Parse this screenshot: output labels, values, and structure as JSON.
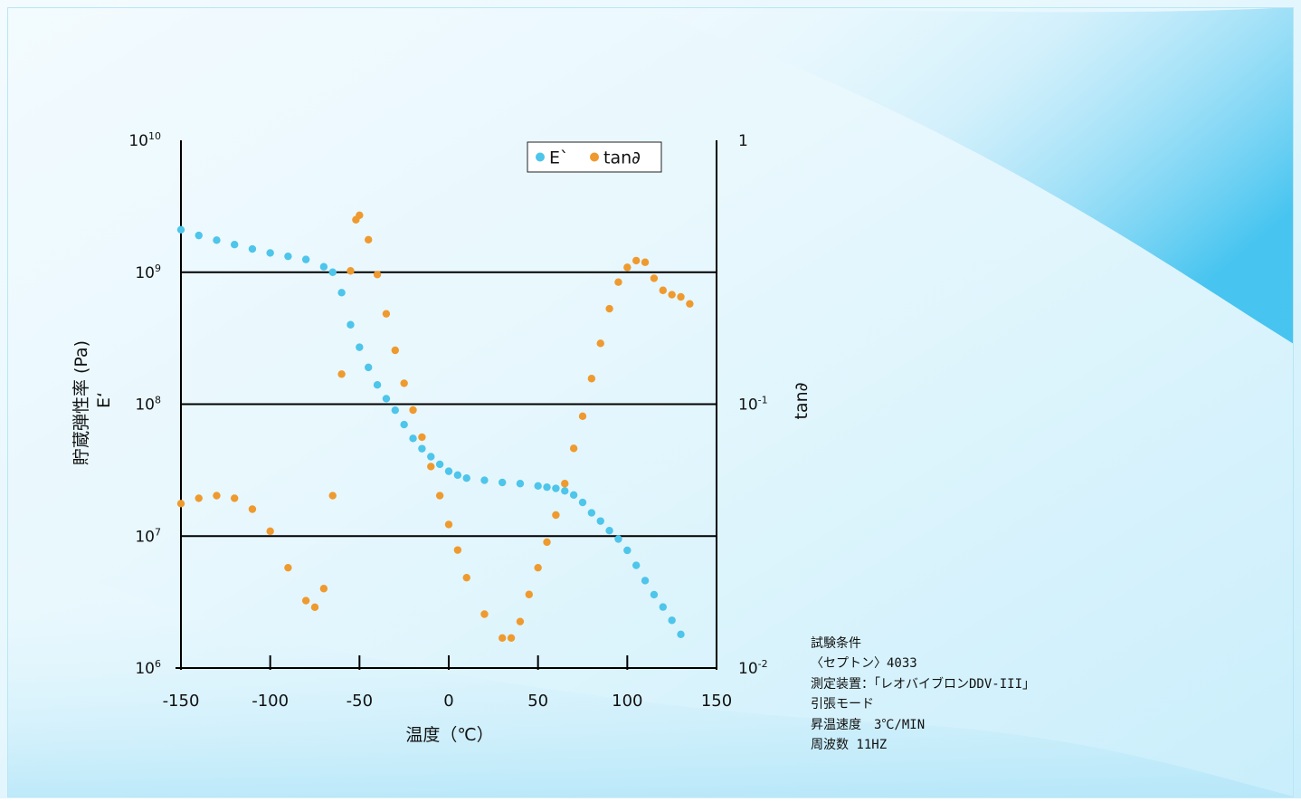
{
  "chart_data": {
    "type": "scatter",
    "xlabel": "温度（℃）",
    "ylabel_left_line1": "貯蔵弾性率 (Pa)",
    "ylabel_left_line2": "E‘",
    "ylabel_right": "tan∂",
    "x_ticks": [
      "-150",
      "-100",
      "-50",
      "0",
      "50",
      "100",
      "150"
    ],
    "x_tick_values": [
      -150,
      -100,
      -50,
      0,
      50,
      100,
      150
    ],
    "xlim": [
      -150,
      150
    ],
    "left_axis": {
      "scale": "log",
      "ylim": [
        1000000,
        10000000000
      ],
      "ticks": [
        {
          "value": 10000000000,
          "base": "10",
          "exp": "10"
        },
        {
          "value": 1000000000,
          "base": "10",
          "exp": "9"
        },
        {
          "value": 100000000,
          "base": "10",
          "exp": "8"
        },
        {
          "value": 10000000,
          "base": "10",
          "exp": "7"
        },
        {
          "value": 1000000,
          "base": "10",
          "exp": "6"
        }
      ]
    },
    "right_axis": {
      "scale": "log",
      "ylim": [
        0.01,
        1
      ],
      "ticks": [
        {
          "value": 1,
          "base": "1",
          "exp": ""
        },
        {
          "value": 0.1,
          "base": "10",
          "exp": "-1"
        },
        {
          "value": 0.01,
          "base": "10",
          "exp": "-2"
        }
      ]
    },
    "grid": "horizontal lines at 10^7, 10^8, 10^9",
    "legend_position": "top-right",
    "series": [
      {
        "name": "E`",
        "axis": "left",
        "color": "#4ec5ea",
        "points": [
          [
            -150,
            2100000000
          ],
          [
            -140,
            1900000000
          ],
          [
            -130,
            1750000000
          ],
          [
            -120,
            1620000000
          ],
          [
            -110,
            1500000000
          ],
          [
            -100,
            1400000000
          ],
          [
            -90,
            1320000000
          ],
          [
            -80,
            1250000000
          ],
          [
            -70,
            1100000000
          ],
          [
            -65,
            1000000000
          ],
          [
            -60,
            700000000
          ],
          [
            -55,
            400000000
          ],
          [
            -50,
            270000000
          ],
          [
            -45,
            190000000
          ],
          [
            -40,
            140000000
          ],
          [
            -35,
            110000000
          ],
          [
            -30,
            90000000
          ],
          [
            -25,
            70000000
          ],
          [
            -20,
            55000000
          ],
          [
            -15,
            46000000
          ],
          [
            -10,
            40000000
          ],
          [
            -5,
            35000000
          ],
          [
            0,
            31000000
          ],
          [
            5,
            29000000
          ],
          [
            10,
            27500000
          ],
          [
            20,
            26500000
          ],
          [
            30,
            25500000
          ],
          [
            40,
            25000000
          ],
          [
            50,
            24000000
          ],
          [
            55,
            23500000
          ],
          [
            60,
            23000000
          ],
          [
            65,
            22000000
          ],
          [
            70,
            20500000
          ],
          [
            75,
            18000000
          ],
          [
            80,
            15000000
          ],
          [
            85,
            13000000
          ],
          [
            90,
            11000000
          ],
          [
            95,
            9500000
          ],
          [
            100,
            7800000
          ],
          [
            105,
            6000000
          ],
          [
            110,
            4600000
          ],
          [
            115,
            3600000
          ],
          [
            120,
            2900000
          ],
          [
            125,
            2300000
          ],
          [
            130,
            1800000
          ]
        ]
      },
      {
        "name": "tan∂",
        "axis": "right",
        "color": "#ef9a2e",
        "points": [
          [
            -150,
            0.042
          ],
          [
            -140,
            0.044
          ],
          [
            -130,
            0.045
          ],
          [
            -120,
            0.044
          ],
          [
            -110,
            0.04
          ],
          [
            -100,
            0.033
          ],
          [
            -90,
            0.024
          ],
          [
            -80,
            0.018
          ],
          [
            -75,
            0.017
          ],
          [
            -70,
            0.02
          ],
          [
            -65,
            0.045
          ],
          [
            -60,
            0.13
          ],
          [
            -55,
            0.32
          ],
          [
            -52,
            0.5
          ],
          [
            -50,
            0.52
          ],
          [
            -45,
            0.42
          ],
          [
            -40,
            0.31
          ],
          [
            -35,
            0.22
          ],
          [
            -30,
            0.16
          ],
          [
            -25,
            0.12
          ],
          [
            -20,
            0.095
          ],
          [
            -15,
            0.075
          ],
          [
            -10,
            0.058
          ],
          [
            -5,
            0.045
          ],
          [
            0,
            0.035
          ],
          [
            5,
            0.028
          ],
          [
            10,
            0.022
          ],
          [
            20,
            0.016
          ],
          [
            30,
            0.013
          ],
          [
            35,
            0.013
          ],
          [
            40,
            0.015
          ],
          [
            45,
            0.019
          ],
          [
            50,
            0.024
          ],
          [
            55,
            0.03
          ],
          [
            60,
            0.038
          ],
          [
            65,
            0.05
          ],
          [
            70,
            0.068
          ],
          [
            75,
            0.09
          ],
          [
            80,
            0.125
          ],
          [
            85,
            0.17
          ],
          [
            90,
            0.23
          ],
          [
            95,
            0.29
          ],
          [
            100,
            0.33
          ],
          [
            105,
            0.35
          ],
          [
            110,
            0.345
          ],
          [
            115,
            0.3
          ],
          [
            120,
            0.27
          ],
          [
            125,
            0.26
          ],
          [
            130,
            0.255
          ],
          [
            135,
            0.24
          ]
        ]
      }
    ],
    "legend": [
      {
        "label": "E`",
        "color": "#4ec5ea"
      },
      {
        "label": "tan∂",
        "color": "#ef9a2e"
      }
    ]
  },
  "notes": {
    "title": "試験条件",
    "lines": [
      "〈セプトン〉4033",
      "測定装置：「レオバイブロンDDV-III」",
      "引張モード",
      "昇温速度　3℃/MIN",
      "周波数 11HZ"
    ]
  }
}
